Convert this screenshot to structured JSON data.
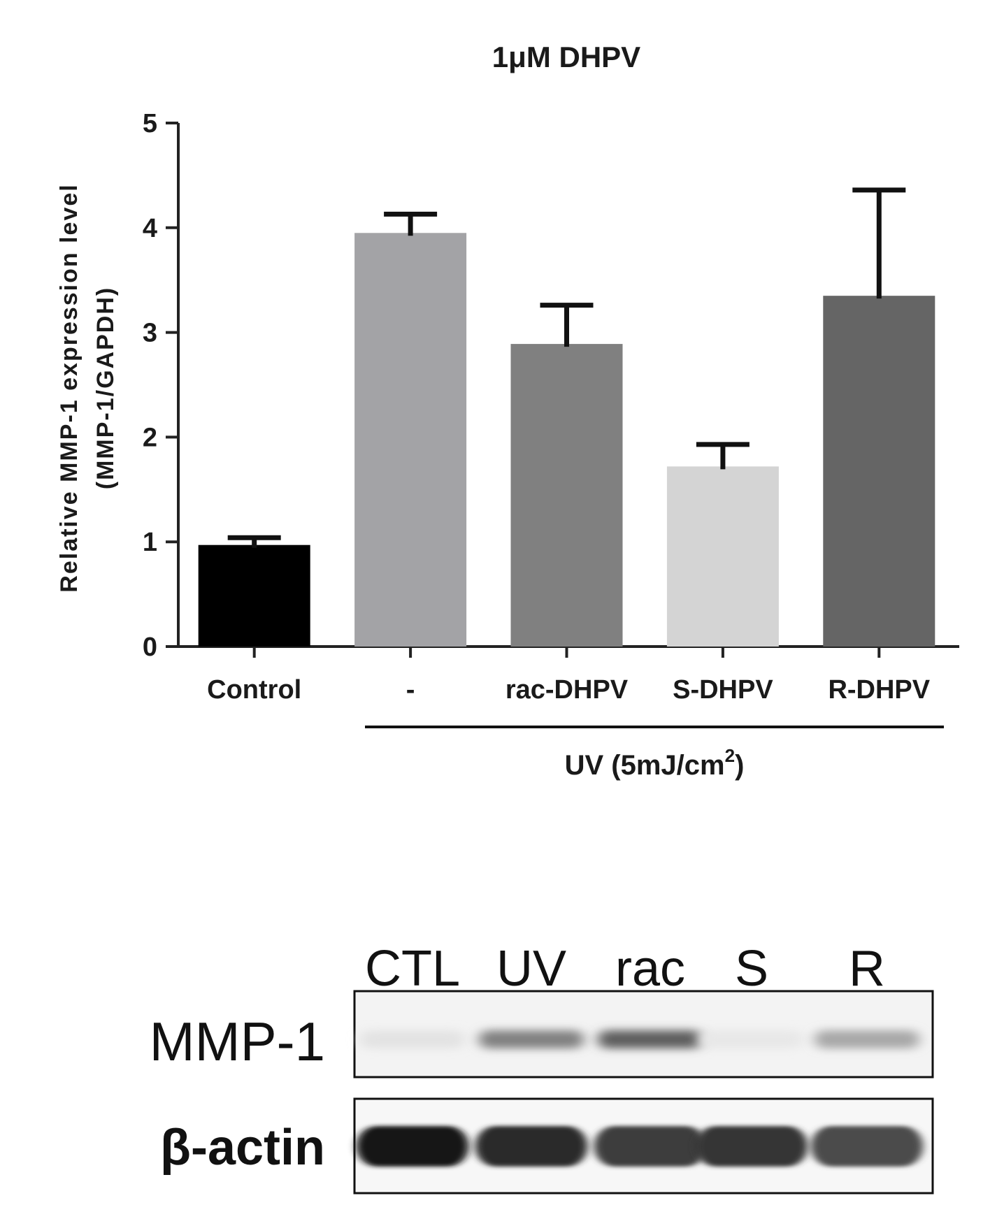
{
  "chart_data": {
    "type": "bar",
    "title": "1μM DHPV",
    "ylabel_line1": "Relative MMP-1 expression level",
    "ylabel_line2": "(MMP-1/GAPDH)",
    "categories": [
      "Control",
      "-",
      "rac-DHPV",
      "S-DHPV",
      "R-DHPV"
    ],
    "values": [
      0.97,
      3.95,
      2.89,
      1.72,
      3.35
    ],
    "errors": [
      0.07,
      0.18,
      0.37,
      0.21,
      1.01
    ],
    "bar_colors": [
      "#000000",
      "#a3a3a6",
      "#808080",
      "#d4d4d4",
      "#656565"
    ],
    "ylim": [
      0,
      5
    ],
    "yticks": [
      "0",
      "1",
      "2",
      "3",
      "4",
      "5"
    ],
    "group_label_main": "UV (5mJ/cm",
    "group_label_sup": "2",
    "group_label_end": ")",
    "grid": false
  },
  "blot": {
    "lanes": [
      "CTL",
      "UV",
      "rac",
      "S",
      "R"
    ],
    "rows": [
      {
        "label": "MMP-1",
        "intensity": [
          0.12,
          0.55,
          0.7,
          0.1,
          0.38
        ]
      },
      {
        "label": "β-actin",
        "intensity": [
          1.0,
          0.92,
          0.85,
          0.88,
          0.78
        ]
      }
    ]
  }
}
